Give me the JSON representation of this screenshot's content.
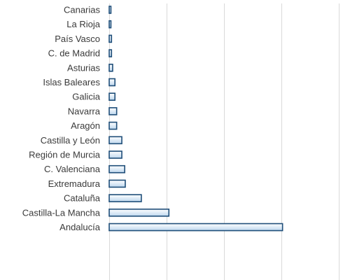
{
  "chart_data": {
    "type": "bar",
    "orientation": "horizontal",
    "title": "",
    "xlabel": "",
    "ylabel": "",
    "categories": [
      "Canarias",
      "La Rioja",
      "País Vasco",
      "C. de Madrid",
      "Asturias",
      "Islas Baleares",
      "Galicia",
      "Navarra",
      "Aragón",
      "Castilla y León",
      "Región de Murcia",
      "C. Valenciana",
      "Extremadura",
      "Cataluña",
      "Castilla-La Mancha",
      "Andalucía"
    ],
    "values": [
      0.3,
      0.3,
      0.4,
      0.4,
      0.6,
      1.0,
      1.0,
      1.3,
      1.3,
      2.2,
      2.2,
      2.7,
      2.8,
      5.6,
      10.4,
      30.2
    ],
    "xlim": [
      0,
      45
    ],
    "grid": true,
    "tick_labels_visible": false,
    "legend": "none",
    "colors": {
      "bar_fill_top": "#ffffff",
      "bar_fill_bottom": "#bdd7ee",
      "bar_stroke": "#1f4e79",
      "grid": "#d9d9d9"
    }
  }
}
